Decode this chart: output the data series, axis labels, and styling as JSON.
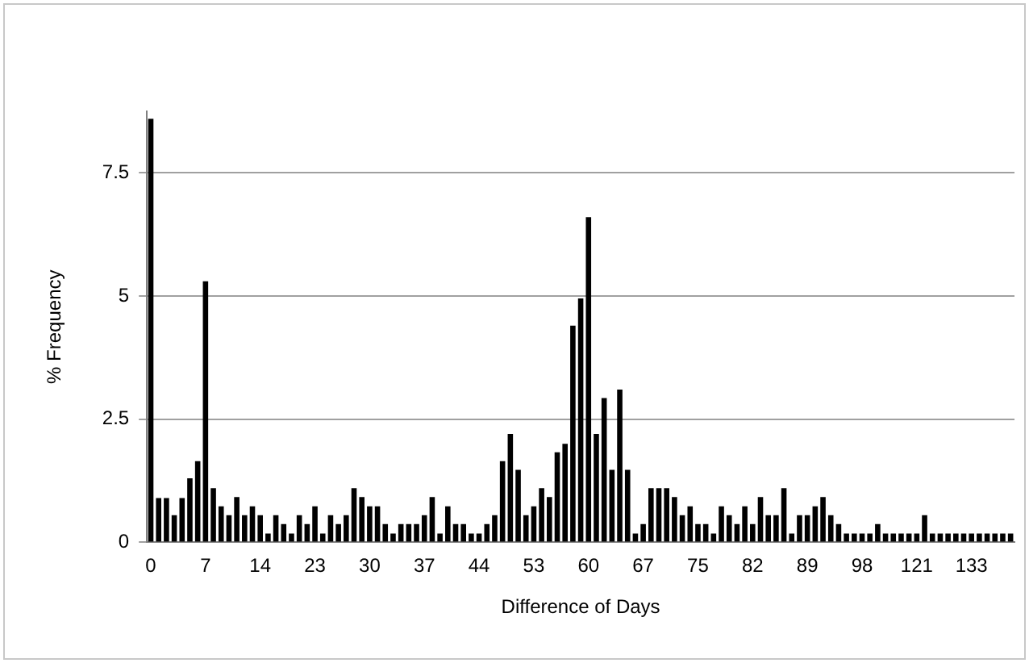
{
  "chart_data": {
    "type": "bar",
    "xlabel": "Difference of Days",
    "ylabel": "% Frequency",
    "categories": [
      "0",
      null,
      null,
      null,
      null,
      null,
      null,
      "7",
      null,
      null,
      null,
      null,
      null,
      null,
      "14",
      null,
      null,
      null,
      null,
      null,
      null,
      "23",
      null,
      null,
      null,
      null,
      null,
      null,
      "30",
      null,
      null,
      null,
      null,
      null,
      null,
      "37",
      null,
      null,
      null,
      null,
      null,
      null,
      "44",
      null,
      null,
      null,
      null,
      null,
      null,
      "53",
      null,
      null,
      null,
      null,
      null,
      null,
      "60",
      null,
      null,
      null,
      null,
      null,
      null,
      "67",
      null,
      null,
      null,
      null,
      null,
      null,
      "75",
      null,
      null,
      null,
      null,
      null,
      null,
      "82",
      null,
      null,
      null,
      null,
      null,
      null,
      "89",
      null,
      null,
      null,
      null,
      null,
      null,
      "98",
      null,
      null,
      null,
      null,
      null,
      null,
      "121",
      null,
      null,
      null,
      null,
      null,
      null,
      "133",
      null,
      null,
      null,
      null,
      null
    ],
    "values": [
      8.6,
      0.9,
      0.9,
      0.55,
      0.9,
      1.3,
      1.65,
      5.3,
      1.1,
      0.73,
      0.55,
      0.92,
      0.55,
      0.73,
      0.55,
      0.18,
      0.55,
      0.37,
      0.18,
      0.55,
      0.37,
      0.73,
      0.18,
      0.55,
      0.37,
      0.55,
      1.1,
      0.92,
      0.73,
      0.73,
      0.37,
      0.18,
      0.37,
      0.37,
      0.37,
      0.55,
      0.92,
      0.18,
      0.73,
      0.37,
      0.37,
      0.18,
      0.18,
      0.37,
      0.55,
      1.65,
      2.2,
      1.47,
      0.55,
      0.73,
      1.1,
      0.92,
      1.83,
      2.0,
      4.4,
      4.95,
      6.6,
      2.2,
      2.93,
      1.47,
      3.1,
      1.47,
      0.18,
      0.37,
      1.1,
      1.1,
      1.1,
      0.92,
      0.55,
      0.73,
      0.37,
      0.37,
      0.18,
      0.73,
      0.55,
      0.37,
      0.73,
      0.37,
      0.92,
      0.55,
      0.55,
      1.1,
      0.18,
      0.55,
      0.55,
      0.73,
      0.92,
      0.55,
      0.37,
      0.18,
      0.18,
      0.18,
      0.18,
      0.37,
      0.18,
      0.18,
      0.18,
      0.18,
      0.18,
      0.55,
      0.18,
      0.18,
      0.18,
      0.18,
      0.18,
      0.18,
      0.18,
      0.18,
      0.18,
      0.18,
      0.18
    ],
    "color": "#000000",
    "ylim": [
      0,
      8.75
    ],
    "yticks": [
      0,
      2.5,
      5,
      7.5
    ],
    "grid": "y",
    "legend": false
  }
}
